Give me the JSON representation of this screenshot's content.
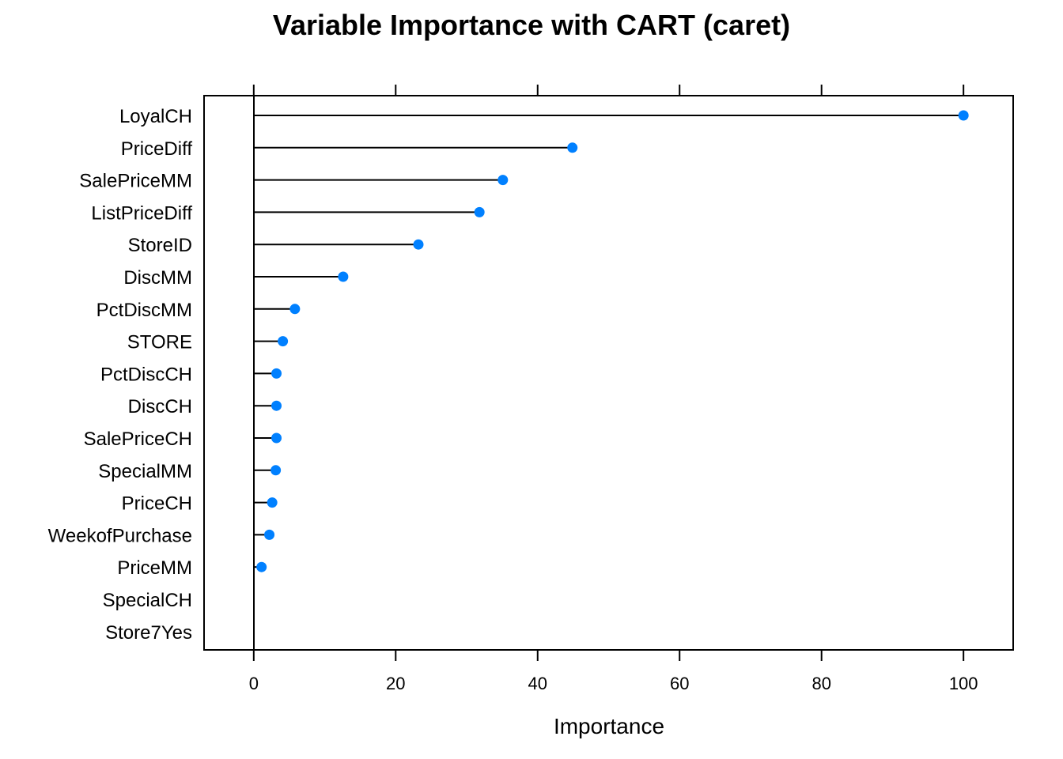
{
  "chart_data": {
    "type": "scatter",
    "subtype": "dotplot",
    "title": "Variable Importance with CART (caret)",
    "xlabel": "Importance",
    "ylabel": "",
    "xlim": [
      -7,
      107
    ],
    "xticks": [
      0,
      20,
      40,
      60,
      80,
      100
    ],
    "grid": false,
    "legend": "none",
    "point_color": "#0080ff",
    "line_color": "#000000",
    "categories": [
      "LoyalCH",
      "PriceDiff",
      "SalePriceMM",
      "ListPriceDiff",
      "StoreID",
      "DiscMM",
      "PctDiscMM",
      "STORE",
      "PctDiscCH",
      "DiscCH",
      "SalePriceCH",
      "SpecialMM",
      "PriceCH",
      "WeekofPurchase",
      "PriceMM",
      "SpecialCH",
      "Store7Yes"
    ],
    "values": [
      100,
      44.9,
      35.1,
      31.8,
      23.2,
      12.6,
      5.8,
      4.1,
      3.2,
      3.2,
      3.2,
      3.1,
      2.6,
      2.2,
      1.1,
      null,
      null
    ]
  }
}
